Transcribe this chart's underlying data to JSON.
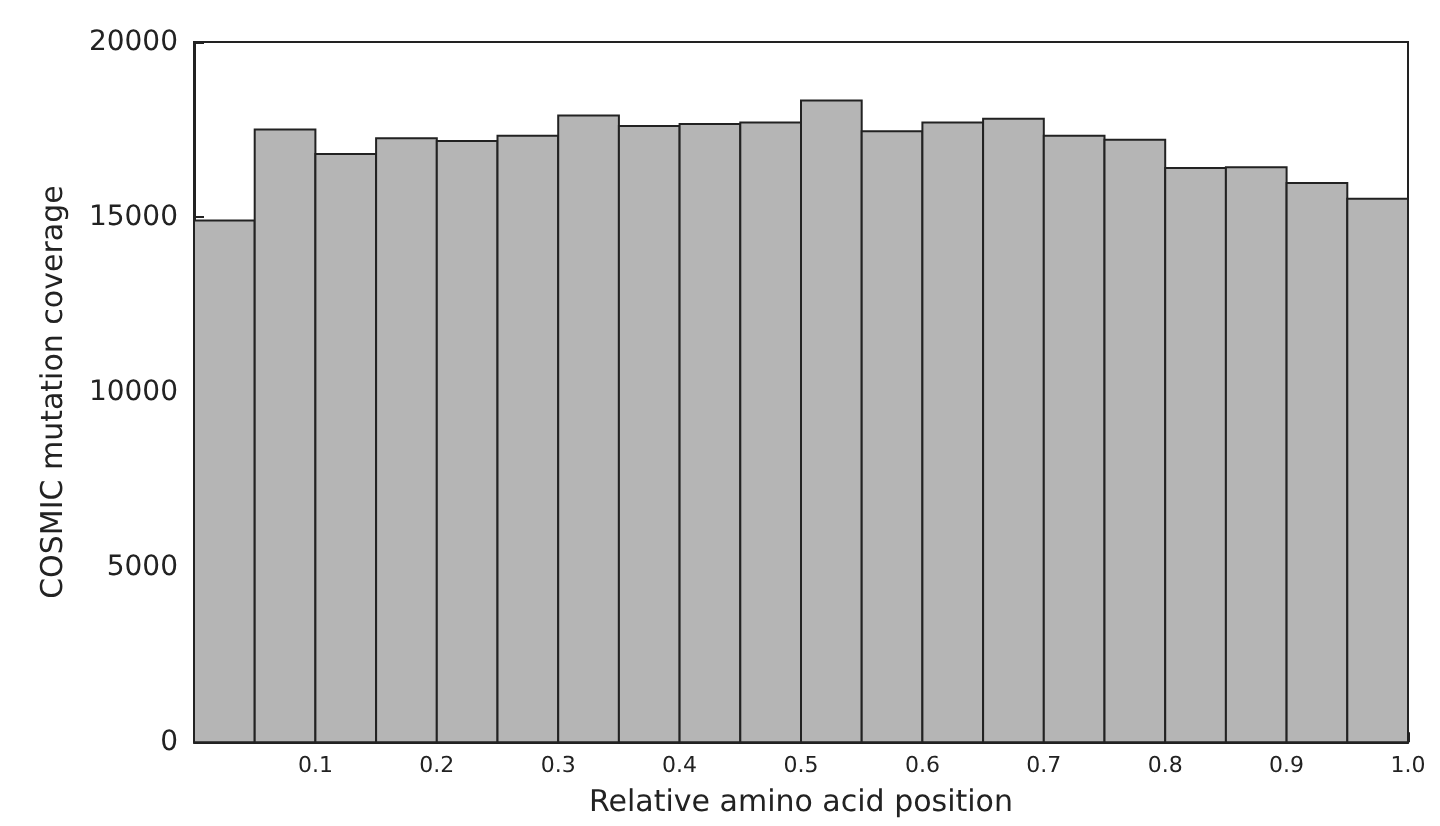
{
  "chart_data": {
    "type": "histogram",
    "xlabel": "Relative amino acid position",
    "ylabel": "COSMIC mutation coverage",
    "bins": [
      0,
      0.05,
      0.1,
      0.15,
      0.2,
      0.25,
      0.3,
      0.35,
      0.4,
      0.45,
      0.5,
      0.55,
      0.6,
      0.65,
      0.7,
      0.75,
      0.8,
      0.85,
      0.9,
      0.95,
      1.0
    ],
    "values": [
      14900,
      17500,
      16800,
      17250,
      17170,
      17320,
      17900,
      17600,
      17660,
      17700,
      18330,
      17450,
      17700,
      17810,
      17320,
      17210,
      16400,
      16420,
      15970,
      15520
    ],
    "color": "#b5b5b5",
    "xlim": [
      0,
      1
    ],
    "xticks": [
      0.1,
      0.2,
      0.3,
      0.4,
      0.5,
      0.6,
      0.7,
      0.8,
      0.9,
      {
        "value": 1.0,
        "label": "1.0"
      }
    ],
    "ylim": [
      0,
      20000
    ],
    "yticks": [
      0,
      5000,
      10000,
      15000,
      20000
    ],
    "grid": false
  }
}
